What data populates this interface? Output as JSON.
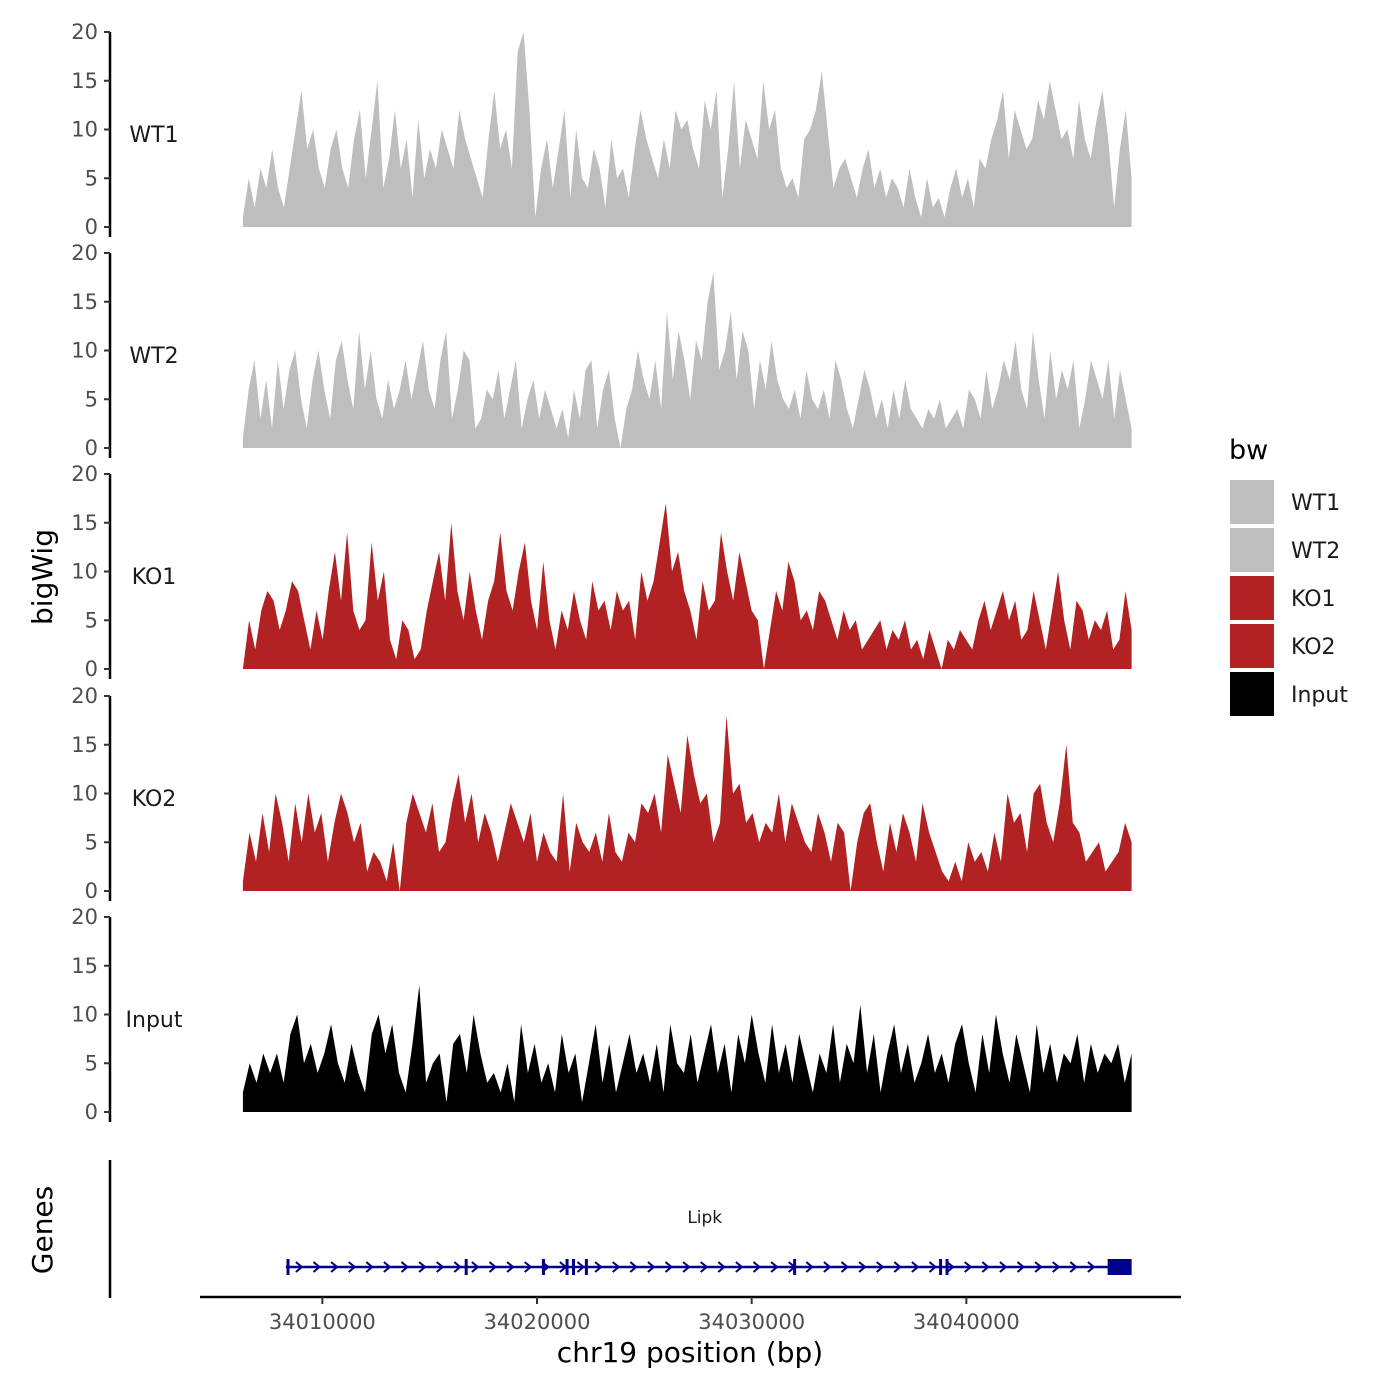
{
  "chart_data": {
    "type": "area",
    "title": "",
    "xlabel": "chr19 position (bp)",
    "ylabel": "bigWig",
    "genes_label": "Genes",
    "legend_title": "bw",
    "legend_position": "right",
    "grid": false,
    "xlim": [
      34004300,
      34050000
    ],
    "ylim": [
      0,
      20
    ],
    "x_ticks": [
      34010000,
      34020000,
      34030000,
      34040000
    ],
    "x_tick_labels": [
      "34010000",
      "34020000",
      "34030000",
      "34040000"
    ],
    "y_ticks": [
      0,
      5,
      10,
      15,
      20
    ],
    "y_tick_labels": [
      "0",
      "5",
      "10",
      "15",
      "20"
    ],
    "colors": {
      "WT1": "#bebebe",
      "WT2": "#bebebe",
      "KO1": "#b22222",
      "KO2": "#b22222",
      "Input": "#000000",
      "gene": "#00008b"
    },
    "signal_x_start": 34006300,
    "signal_x_end": 34047700,
    "series": [
      {
        "name": "WT1",
        "values": [
          1,
          5,
          2,
          6,
          4,
          8,
          4,
          2,
          6,
          10,
          14,
          8,
          10,
          6,
          4,
          8,
          10,
          6,
          4,
          9,
          12,
          5,
          10,
          15,
          4,
          7,
          12,
          6,
          9,
          3,
          11,
          5,
          8,
          6,
          10,
          8,
          6,
          12,
          9,
          7,
          5,
          3,
          9,
          14,
          8,
          10,
          6,
          18,
          20,
          12,
          1,
          6,
          9,
          4,
          8,
          12,
          3,
          10,
          5,
          4,
          8,
          6,
          2,
          9,
          5,
          6,
          3,
          8,
          12,
          9,
          7,
          5,
          9,
          6,
          12,
          10,
          11,
          8,
          6,
          13,
          10,
          14,
          3,
          8,
          15,
          6,
          11,
          9,
          7,
          15,
          10,
          12,
          6,
          4,
          5,
          3,
          9,
          10,
          12,
          16,
          10,
          4,
          6,
          7,
          5,
          3,
          6,
          8,
          4,
          6,
          3,
          5,
          4,
          2,
          6,
          3,
          1,
          5,
          2,
          3,
          1,
          4,
          6,
          3,
          5,
          2,
          7,
          6,
          9,
          11,
          14,
          7,
          12,
          10,
          8,
          9,
          13,
          11,
          15,
          12,
          9,
          10,
          7,
          13,
          9,
          7,
          11,
          14,
          9,
          2,
          8,
          12,
          5
        ]
      },
      {
        "name": "WT2",
        "values": [
          1,
          6,
          9,
          3,
          7,
          2,
          9,
          4,
          8,
          10,
          5,
          2,
          7,
          10,
          6,
          3,
          9,
          11,
          7,
          4,
          12,
          6,
          10,
          5,
          3,
          7,
          4,
          6,
          9,
          5,
          8,
          11,
          6,
          4,
          9,
          12,
          3,
          6,
          10,
          9,
          2,
          3,
          6,
          5,
          8,
          3,
          6,
          9,
          2,
          5,
          7,
          3,
          6,
          4,
          2,
          4,
          1,
          6,
          3,
          8,
          9,
          2,
          6,
          8,
          3,
          0,
          4,
          6,
          10,
          7,
          5,
          9,
          4,
          14,
          7,
          12,
          9,
          5,
          11,
          9,
          15,
          18,
          8,
          10,
          14,
          7,
          12,
          10,
          4,
          9,
          6,
          11,
          7,
          5,
          4,
          6,
          3,
          8,
          5,
          4,
          6,
          3,
          9,
          7,
          4,
          2,
          5,
          8,
          6,
          3,
          5,
          2,
          6,
          3,
          7,
          4,
          3,
          2,
          4,
          3,
          5,
          2,
          3,
          4,
          2,
          6,
          5,
          3,
          8,
          4,
          6,
          9,
          7,
          11,
          6,
          4,
          12,
          7,
          3,
          10,
          5,
          8,
          6,
          9,
          2,
          5,
          9,
          7,
          5,
          9,
          3,
          8,
          5,
          2
        ]
      },
      {
        "name": "KO1",
        "values": [
          0,
          5,
          2,
          6,
          8,
          7,
          4,
          6,
          9,
          8,
          5,
          2,
          6,
          3,
          8,
          12,
          7,
          14,
          6,
          4,
          5,
          13,
          7,
          10,
          3,
          1,
          5,
          4,
          1,
          2,
          6,
          9,
          12,
          7,
          15,
          8,
          5,
          10,
          6,
          3,
          7,
          9,
          14,
          8,
          6,
          10,
          13,
          7,
          4,
          11,
          5,
          2,
          6,
          4,
          8,
          5,
          3,
          9,
          6,
          7,
          4,
          8,
          6,
          7,
          3,
          10,
          7,
          9,
          13,
          17,
          10,
          12,
          8,
          6,
          3,
          9,
          6,
          7,
          14,
          10,
          7,
          12,
          9,
          6,
          5,
          0,
          4,
          8,
          6,
          11,
          9,
          5,
          6,
          4,
          8,
          7,
          5,
          3,
          6,
          4,
          5,
          2,
          3,
          4,
          5,
          2,
          4,
          3,
          5,
          2,
          3,
          1,
          4,
          2,
          0,
          3,
          2,
          4,
          3,
          2,
          5,
          7,
          4,
          6,
          8,
          5,
          7,
          3,
          4,
          8,
          5,
          2,
          6,
          10,
          5,
          2,
          7,
          6,
          3,
          5,
          4,
          6,
          2,
          3,
          8,
          4
        ]
      },
      {
        "name": "KO2",
        "values": [
          1,
          6,
          3,
          8,
          4,
          10,
          7,
          3,
          9,
          5,
          10,
          6,
          8,
          3,
          7,
          10,
          8,
          5,
          7,
          2,
          4,
          3,
          1,
          5,
          0,
          7,
          10,
          8,
          6,
          9,
          4,
          5,
          9,
          12,
          7,
          10,
          5,
          8,
          6,
          3,
          6,
          9,
          7,
          5,
          8,
          3,
          6,
          4,
          3,
          10,
          2,
          7,
          5,
          4,
          6,
          3,
          8,
          4,
          3,
          6,
          5,
          9,
          8,
          10,
          6,
          14,
          11,
          8,
          16,
          12,
          9,
          10,
          5,
          7,
          18,
          10,
          11,
          7,
          8,
          5,
          7,
          6,
          10,
          5,
          9,
          7,
          5,
          4,
          8,
          6,
          3,
          7,
          6,
          0,
          5,
          8,
          9,
          5,
          2,
          7,
          4,
          8,
          6,
          3,
          9,
          6,
          4,
          2,
          1,
          3,
          1,
          5,
          3,
          4,
          2,
          6,
          3,
          10,
          7,
          8,
          4,
          10,
          11,
          7,
          5,
          9,
          15,
          7,
          6,
          3,
          4,
          5,
          2,
          3,
          4,
          7,
          5
        ]
      },
      {
        "name": "Input",
        "values": [
          2,
          5,
          3,
          6,
          4,
          6,
          3,
          8,
          10,
          5,
          7,
          4,
          6,
          9,
          5,
          3,
          7,
          4,
          2,
          8,
          10,
          6,
          9,
          4,
          2,
          7,
          13,
          3,
          5,
          6,
          1,
          7,
          8,
          4,
          10,
          6,
          3,
          4,
          2,
          5,
          1,
          9,
          4,
          7,
          3,
          5,
          2,
          8,
          4,
          6,
          1,
          5,
          9,
          3,
          7,
          2,
          5,
          8,
          4,
          6,
          3,
          7,
          2,
          9,
          5,
          4,
          8,
          3,
          6,
          9,
          4,
          7,
          2,
          8,
          5,
          10,
          6,
          3,
          9,
          4,
          7,
          3,
          8,
          5,
          2,
          6,
          4,
          9,
          3,
          7,
          5,
          11,
          4,
          8,
          2,
          6,
          9,
          4,
          7,
          3,
          5,
          8,
          4,
          6,
          3,
          7,
          9,
          5,
          2,
          8,
          4,
          10,
          6,
          3,
          8,
          5,
          2,
          9,
          4,
          7,
          3,
          6,
          5,
          8,
          3,
          7,
          4,
          6,
          5,
          7,
          3,
          6
        ]
      }
    ],
    "genes": [
      {
        "name": "Lipk",
        "start": 34008300,
        "end": 34047700,
        "strand": "+",
        "exons": [
          34008400,
          34016700,
          34020300,
          34021400,
          34021700,
          34022300,
          34032000,
          34038800,
          34039100
        ]
      }
    ]
  }
}
